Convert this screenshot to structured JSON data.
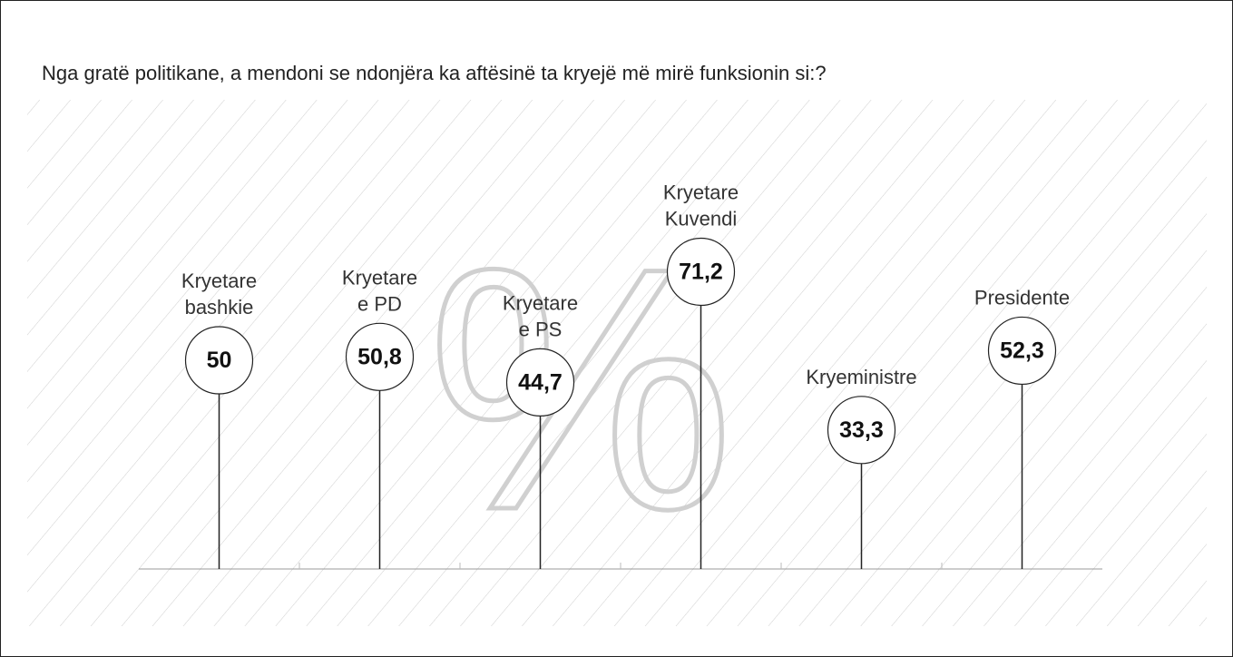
{
  "chart_data": {
    "type": "lollipop",
    "title": "Nga gratë politikane, a mendoni se ndonjëra ka aftësinë ta kryejë më mirë funksionin si:?",
    "watermark": "%",
    "categories": [
      [
        "Kryetare",
        "bashkie"
      ],
      [
        "Kryetare",
        "e PD"
      ],
      [
        "Kryetare",
        "e PS"
      ],
      [
        "Kryetare",
        "Kuvendi"
      ],
      [
        "Kryeministre"
      ],
      [
        "Presidente"
      ]
    ],
    "values": [
      50,
      50.8,
      44.7,
      71.2,
      33.3,
      52.3
    ],
    "value_labels": [
      "50",
      "50,8",
      "44,7",
      "71,2",
      "33,3",
      "52,3"
    ],
    "color": "#222222"
  }
}
